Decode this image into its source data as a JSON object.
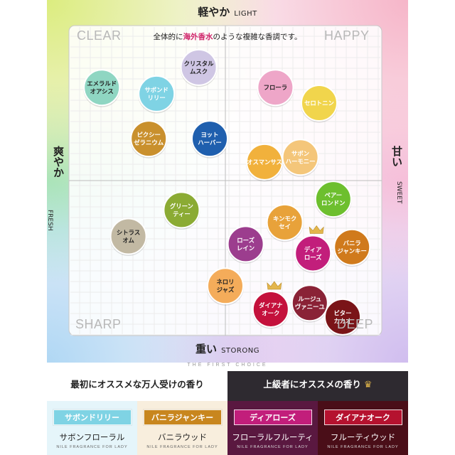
{
  "chart_data": {
    "type": "scatter",
    "title": "",
    "subtitle": {
      "before": "全体的に",
      "highlight": "海外香水",
      "after": "のような複雑な香調です。"
    },
    "axes": {
      "top": {
        "jp": "軽やか",
        "en": "LIGHT"
      },
      "bottom": {
        "jp": "重い",
        "en": "STORONG"
      },
      "left": {
        "jp": "爽やか",
        "en": "FRESH"
      },
      "right": {
        "jp": "甘い",
        "en": "SWEET"
      }
    },
    "quadrants": {
      "top_left": "CLEAR",
      "top_right": "HAPPY",
      "bottom_left": "SHARP",
      "bottom_right": "DEEP"
    },
    "x_range": [
      -1,
      1
    ],
    "y_range": [
      -1,
      1
    ],
    "points": [
      {
        "label": [
          "エメラルド",
          "オアシス"
        ],
        "x": -0.79,
        "y": 0.6,
        "color": "#8fd6c2",
        "text_color": "#222",
        "crown": false
      },
      {
        "label": [
          "サボンド",
          "リリー"
        ],
        "x": -0.44,
        "y": 0.56,
        "color": "#7fd3e4",
        "text_color": "#fff",
        "crown": false
      },
      {
        "label": [
          "クリスタル",
          "ムスク"
        ],
        "x": -0.17,
        "y": 0.73,
        "color": "#cfc6e4",
        "text_color": "#222",
        "crown": false
      },
      {
        "label": [
          "ピクシー",
          "ゼラニウム"
        ],
        "x": -0.49,
        "y": 0.27,
        "color": "#c9902d",
        "text_color": "#fff",
        "crown": false
      },
      {
        "label": [
          "ヨット",
          "ハーバー"
        ],
        "x": -0.1,
        "y": 0.27,
        "color": "#1f5fae",
        "text_color": "#fff",
        "crown": false
      },
      {
        "label": [
          "フローラ"
        ],
        "x": 0.32,
        "y": 0.6,
        "color": "#eea6c8",
        "text_color": "#222",
        "crown": false
      },
      {
        "label": [
          "セロトニン"
        ],
        "x": 0.6,
        "y": 0.5,
        "color": "#f1d54c",
        "text_color": "#fff",
        "crown": false
      },
      {
        "label": [
          "オスマンサス"
        ],
        "x": 0.25,
        "y": 0.12,
        "color": "#f1b13c",
        "text_color": "#fff",
        "crown": false
      },
      {
        "label": [
          "サボン",
          "ハーモニー"
        ],
        "x": 0.48,
        "y": 0.15,
        "color": "#f4c67a",
        "text_color": "#fff",
        "crown": false
      },
      {
        "label": [
          "グリーン",
          "ティー"
        ],
        "x": -0.28,
        "y": -0.19,
        "color": "#8bab34",
        "text_color": "#fff",
        "crown": false
      },
      {
        "label": [
          "シトラス",
          "オム"
        ],
        "x": -0.62,
        "y": -0.36,
        "color": "#c2b9a3",
        "text_color": "#222",
        "crown": false
      },
      {
        "label": [
          "ペアー",
          "ロンドン"
        ],
        "x": 0.69,
        "y": -0.12,
        "color": "#6dbf2e",
        "text_color": "#fff",
        "crown": false
      },
      {
        "label": [
          "キンモク",
          "セイ"
        ],
        "x": 0.38,
        "y": -0.27,
        "color": "#e8a23a",
        "text_color": "#fff",
        "crown": false
      },
      {
        "label": [
          "ローズ",
          "レイン"
        ],
        "x": 0.13,
        "y": -0.41,
        "color": "#9c3d8e",
        "text_color": "#fff",
        "crown": false
      },
      {
        "label": [
          "ディア",
          "ローズ"
        ],
        "x": 0.56,
        "y": -0.47,
        "color": "#c21e7b",
        "text_color": "#fff",
        "crown": true
      },
      {
        "label": [
          "バニラ",
          "ジャンキー"
        ],
        "x": 0.81,
        "y": -0.43,
        "color": "#d07a1c",
        "text_color": "#fff",
        "crown": false
      },
      {
        "label": [
          "ネロリ",
          "ジャズ"
        ],
        "x": 0.0,
        "y": -0.68,
        "color": "#f4ac5a",
        "text_color": "#222",
        "crown": false
      },
      {
        "label": [
          "ダイアナ",
          "オーク"
        ],
        "x": 0.29,
        "y": -0.83,
        "color": "#c4113c",
        "text_color": "#fff",
        "crown": true
      },
      {
        "label": [
          "ルージュ",
          "ヴァニーユ"
        ],
        "x": 0.54,
        "y": -0.79,
        "color": "#8a2236",
        "text_color": "#fff",
        "crown": false
      },
      {
        "label": [
          "ビター",
          "カカオ"
        ],
        "x": 0.75,
        "y": -0.88,
        "color": "#7a1418",
        "text_color": "#fff",
        "crown": false
      }
    ]
  },
  "footer": {
    "the_first_choice": "THE FIRST CHOICE",
    "left": {
      "heading": "最初にオススメな万人受けの香り",
      "items": [
        {
          "pill": "サボンドリリー",
          "desc": "サボンフローラル",
          "sub": "NILE FRAGRANCE FOR LADY",
          "pill_color": "#7fd3e4",
          "bg": "#e5f5fa",
          "desc_color": "#222",
          "sub_color": "#666"
        },
        {
          "pill": "バニラジャンキー",
          "desc": "バニラウッド",
          "sub": "NILE FRAGRANCE FOR LADY",
          "pill_color": "#c8861e",
          "bg": "#f8eedd",
          "desc_color": "#222",
          "sub_color": "#666"
        }
      ]
    },
    "right": {
      "heading": "上級者にオススメの香り",
      "crown": "♛",
      "items": [
        {
          "pill": "ディアローズ",
          "desc": "フローラルフルーティ",
          "sub": "NILE FRAGRANCE FOR LADY",
          "pill_color": "#c21e7b",
          "bg": "#5a1840",
          "desc_color": "#fff",
          "sub_color": "#ddd"
        },
        {
          "pill": "ダイアナオーク",
          "desc": "フルーティウッド",
          "sub": "NILE FRAGRANCE FOR LADY",
          "pill_color": "#b5122f",
          "bg": "#4a0e18",
          "desc_color": "#fff",
          "sub_color": "#ddd"
        }
      ]
    }
  }
}
